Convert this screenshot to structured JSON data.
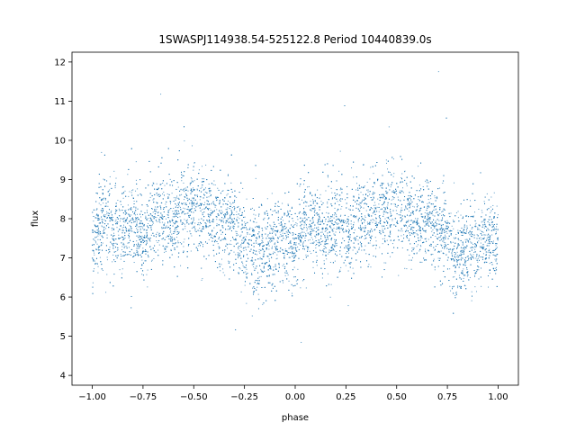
{
  "chart_data": {
    "type": "scatter",
    "title": "1SWASPJ114938.54-525122.8 Period 10440839.0s",
    "xlabel": "phase",
    "ylabel": "flux",
    "xlim": [
      -1.1,
      1.1
    ],
    "ylim": [
      3.75,
      12.25
    ],
    "xticks": [
      -1.0,
      -0.75,
      -0.5,
      -0.25,
      0.0,
      0.25,
      0.5,
      0.75,
      1.0
    ],
    "xtick_labels": [
      "−1.00",
      "−0.75",
      "−0.50",
      "−0.25",
      "0.00",
      "0.25",
      "0.50",
      "0.75",
      "1.00"
    ],
    "yticks": [
      4,
      5,
      6,
      7,
      8,
      9,
      10,
      11,
      12
    ],
    "ytick_labels": [
      "4",
      "5",
      "6",
      "7",
      "8",
      "9",
      "10",
      "11",
      "12"
    ],
    "grid": false,
    "marker_color": "#1f77b4",
    "series": [
      {
        "phase_folded": true,
        "phase_profile": [
          [
            -1.0,
            7.3
          ],
          [
            -0.97,
            7.8
          ],
          [
            -0.94,
            8.0
          ],
          [
            -0.9,
            7.7
          ],
          [
            -0.86,
            7.6
          ],
          [
            -0.82,
            7.9
          ],
          [
            -0.78,
            7.8
          ],
          [
            -0.74,
            7.6
          ],
          [
            -0.7,
            8.0
          ],
          [
            -0.65,
            8.1
          ],
          [
            -0.6,
            8.0
          ],
          [
            -0.55,
            8.2
          ],
          [
            -0.5,
            8.4
          ],
          [
            -0.46,
            8.2
          ],
          [
            -0.42,
            8.0
          ],
          [
            -0.38,
            7.9
          ],
          [
            -0.33,
            8.0
          ],
          [
            -0.29,
            7.7
          ],
          [
            -0.25,
            7.4
          ],
          [
            -0.2,
            7.2
          ],
          [
            -0.15,
            7.1
          ],
          [
            -0.1,
            7.3
          ],
          [
            -0.05,
            7.5
          ],
          [
            0.0,
            7.4
          ],
          [
            0.03,
            7.8
          ],
          [
            0.06,
            7.9
          ],
          [
            0.1,
            7.7
          ],
          [
            0.14,
            7.6
          ],
          [
            0.18,
            7.9
          ],
          [
            0.22,
            7.8
          ],
          [
            0.26,
            7.6
          ],
          [
            0.3,
            8.0
          ],
          [
            0.35,
            8.1
          ],
          [
            0.4,
            8.0
          ],
          [
            0.45,
            8.2
          ],
          [
            0.5,
            8.4
          ],
          [
            0.54,
            8.2
          ],
          [
            0.58,
            8.0
          ],
          [
            0.62,
            7.9
          ],
          [
            0.67,
            8.0
          ],
          [
            0.71,
            7.7
          ],
          [
            0.75,
            7.4
          ],
          [
            0.8,
            7.2
          ],
          [
            0.85,
            7.1
          ],
          [
            0.9,
            7.3
          ],
          [
            0.95,
            7.5
          ],
          [
            1.0,
            7.4
          ]
        ],
        "point_count": 9000,
        "scatter_sd": 0.55
      }
    ]
  }
}
